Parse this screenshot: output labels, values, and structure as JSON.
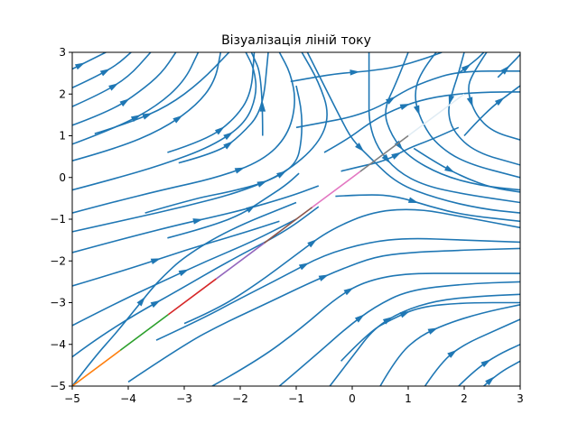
{
  "chart_data": {
    "type": "streamplot",
    "title": "Візуалізація ліній току",
    "xlabel": "",
    "ylabel": "",
    "xlim": [
      -5,
      3
    ],
    "ylim": [
      -5,
      3
    ],
    "xticks": [
      -5,
      -4,
      -3,
      -2,
      -1,
      0,
      1,
      2,
      3
    ],
    "yticks": [
      -5,
      -4,
      -3,
      -2,
      -1,
      0,
      1,
      2,
      3
    ],
    "xtick_labels": [
      "−5",
      "−4",
      "−3",
      "−2",
      "−1",
      "0",
      "1",
      "2",
      "3"
    ],
    "ytick_labels": [
      "−5",
      "−4",
      "−3",
      "−2",
      "−1",
      "0",
      "1",
      "2",
      "3"
    ],
    "grid": false,
    "stream_color": "#1f77b4",
    "diagonal_line": {
      "x": [
        -5,
        1
      ],
      "y": [
        -5,
        1
      ],
      "segment_colors": [
        "#ff7f0e",
        "#2ca02c",
        "#d62728",
        "#9467bd",
        "#8c564b",
        "#e377c2",
        "#7f7f7f"
      ],
      "extension": {
        "x": [
          1,
          2
        ],
        "y": [
          1,
          2
        ],
        "color": "#e0ecf4"
      }
    },
    "streamlines": [
      [
        [
          -5,
          -5
        ],
        [
          -4.6,
          -4.3
        ],
        [
          -4.2,
          -3.7
        ],
        [
          -3.9,
          -3.2
        ],
        [
          -3.6,
          -2.7
        ],
        [
          -3.4,
          -2.4
        ],
        [
          -3.0,
          -1.9
        ],
        [
          -2.2,
          -1.25
        ],
        [
          -1.0,
          -0.6
        ]
      ],
      [
        [
          -5,
          -4.3
        ],
        [
          -4.6,
          -3.9
        ],
        [
          -3.9,
          -3.3
        ],
        [
          -3.1,
          -2.7
        ],
        [
          -2.2,
          -2.0
        ],
        [
          -1.2,
          -1.3
        ],
        [
          -0.6,
          -0.7
        ]
      ],
      [
        [
          -5,
          -3.55
        ],
        [
          -4.2,
          -3.0
        ],
        [
          -3.4,
          -2.5
        ],
        [
          -2.6,
          -2.0
        ],
        [
          -1.8,
          -1.55
        ],
        [
          -1.0,
          -1.0
        ]
      ],
      [
        [
          -5,
          -2.6
        ],
        [
          -4.0,
          -2.2
        ],
        [
          -3.0,
          -1.75
        ],
        [
          -2.0,
          -1.35
        ],
        [
          -1.3,
          -1.05
        ]
      ],
      [
        [
          -5,
          -1.8
        ],
        [
          -3.5,
          -1.25
        ],
        [
          -2.0,
          -0.8
        ],
        [
          -1.1,
          -0.45
        ],
        [
          -0.6,
          -0.2
        ]
      ],
      [
        [
          -5,
          -1.3
        ],
        [
          -4.0,
          -1.0
        ],
        [
          -3.0,
          -0.7
        ],
        [
          -2.0,
          -0.35
        ],
        [
          -1.2,
          0.1
        ],
        [
          -0.6,
          0.8
        ],
        [
          -0.4,
          1.5
        ],
        [
          -0.6,
          2.3
        ],
        [
          -0.9,
          3.0
        ]
      ],
      [
        [
          -5,
          -0.85
        ],
        [
          -4.3,
          -0.6
        ],
        [
          -3.4,
          -0.3
        ],
        [
          -2.4,
          0.0
        ],
        [
          -1.6,
          0.4
        ],
        [
          -1.15,
          1.0
        ],
        [
          -1.0,
          1.8
        ],
        [
          -1.1,
          2.5
        ],
        [
          -1.3,
          3.0
        ]
      ],
      [
        [
          -5,
          -0.3
        ],
        [
          -4.3,
          -0.05
        ],
        [
          -3.4,
          0.3
        ],
        [
          -2.5,
          0.75
        ],
        [
          -1.9,
          1.3
        ],
        [
          -1.7,
          2.0
        ],
        [
          -1.75,
          2.6
        ],
        [
          -1.9,
          3.0
        ]
      ],
      [
        [
          -5,
          0.4
        ],
        [
          -4.2,
          0.7
        ],
        [
          -3.4,
          1.15
        ],
        [
          -2.8,
          1.7
        ],
        [
          -2.45,
          2.3
        ],
        [
          -2.35,
          3.0
        ]
      ],
      [
        [
          -5,
          0.8
        ],
        [
          -4.2,
          1.2
        ],
        [
          -3.5,
          1.7
        ],
        [
          -3.0,
          2.3
        ],
        [
          -2.75,
          3.0
        ]
      ],
      [
        [
          -5,
          1.25
        ],
        [
          -4.3,
          1.6
        ],
        [
          -3.8,
          2.05
        ],
        [
          -3.4,
          2.5
        ],
        [
          -3.15,
          3.0
        ]
      ],
      [
        [
          -5,
          1.7
        ],
        [
          -4.5,
          2.0
        ],
        [
          -4.0,
          2.4
        ],
        [
          -3.6,
          3.0
        ]
      ],
      [
        [
          -5,
          2.15
        ],
        [
          -4.6,
          2.4
        ],
        [
          -4.2,
          2.7
        ],
        [
          -3.95,
          3.0
        ]
      ],
      [
        [
          -5,
          2.6
        ],
        [
          -4.7,
          2.8
        ],
        [
          -4.4,
          3.0
        ]
      ],
      [
        [
          -4.6,
          1.05
        ],
        [
          -4.0,
          1.3
        ],
        [
          -3.3,
          1.7
        ],
        [
          -2.7,
          2.3
        ],
        [
          -2.2,
          3.0
        ]
      ],
      [
        [
          -3.3,
          0.6
        ],
        [
          -2.6,
          0.9
        ],
        [
          -2.1,
          1.4
        ],
        [
          -1.8,
          2.0
        ],
        [
          -1.75,
          3.0
        ]
      ],
      [
        [
          -3.1,
          0.35
        ],
        [
          -2.4,
          0.6
        ],
        [
          -2.0,
          1.0
        ],
        [
          -1.6,
          1.6
        ],
        [
          -1.5,
          3.0
        ]
      ],
      [
        [
          -3.7,
          -0.85
        ],
        [
          -2.8,
          -0.5
        ],
        [
          -2.2,
          -0.35
        ],
        [
          -1.5,
          -0.1
        ],
        [
          -1.0,
          0.3
        ],
        [
          -0.9,
          0.9
        ],
        [
          -0.9,
          1.6
        ],
        [
          -1.0,
          2.2
        ]
      ],
      [
        [
          -3.3,
          -1.45
        ],
        [
          -2.6,
          -1.2
        ],
        [
          -2.0,
          -0.9
        ],
        [
          -1.6,
          -0.55
        ],
        [
          -1.2,
          -0.2
        ],
        [
          -0.95,
          0.1
        ]
      ],
      [
        [
          -1.6,
          1.0
        ],
        [
          -1.6,
          2.4
        ],
        [
          -1.8,
          3.0
        ]
      ],
      [
        [
          -4.0,
          -4.9
        ],
        [
          -3.0,
          -4.0
        ],
        [
          -2.3,
          -3.5
        ],
        [
          -1.5,
          -3.0
        ],
        [
          -0.8,
          -2.55
        ],
        [
          -0.2,
          -2.2
        ],
        [
          0.4,
          -1.9
        ],
        [
          1.0,
          -1.8
        ],
        [
          1.8,
          -1.75
        ],
        [
          3.0,
          -1.7
        ]
      ],
      [
        [
          -3.5,
          -3.9
        ],
        [
          -2.7,
          -3.4
        ],
        [
          -2.0,
          -2.9
        ],
        [
          -1.2,
          -2.35
        ],
        [
          -0.5,
          -1.85
        ],
        [
          0.3,
          -1.55
        ],
        [
          1.0,
          -1.45
        ],
        [
          2.0,
          -1.5
        ],
        [
          3.0,
          -1.55
        ]
      ],
      [
        [
          -3.0,
          -3.5
        ],
        [
          -2.4,
          -3.15
        ],
        [
          -1.7,
          -2.55
        ],
        [
          -1.0,
          -1.85
        ],
        [
          -0.4,
          -1.25
        ],
        [
          0.4,
          -0.8
        ],
        [
          1.2,
          -0.75
        ],
        [
          2.0,
          -0.95
        ],
        [
          3.0,
          -1.2
        ]
      ],
      [
        [
          -2.5,
          -5
        ],
        [
          -1.7,
          -4.4
        ],
        [
          -0.9,
          -3.6
        ],
        [
          -0.3,
          -2.9
        ],
        [
          0.2,
          -2.5
        ],
        [
          0.9,
          -2.3
        ],
        [
          2.0,
          -2.3
        ],
        [
          3.0,
          -2.3
        ]
      ],
      [
        [
          -1.3,
          -5
        ],
        [
          -0.6,
          -4.2
        ],
        [
          -0.1,
          -3.6
        ],
        [
          0.4,
          -3.1
        ],
        [
          1.0,
          -2.7
        ],
        [
          2.0,
          -2.55
        ],
        [
          3.0,
          -2.5
        ]
      ],
      [
        [
          -0.4,
          -5
        ],
        [
          0.0,
          -4.3
        ],
        [
          0.4,
          -3.6
        ],
        [
          0.9,
          -3.2
        ],
        [
          1.5,
          -2.95
        ],
        [
          2.2,
          -2.85
        ],
        [
          3.0,
          -2.8
        ]
      ],
      [
        [
          -0.2,
          -4.4
        ],
        [
          0.3,
          -3.7
        ],
        [
          0.7,
          -3.4
        ],
        [
          1.2,
          -3.1
        ],
        [
          2.0,
          -3.0
        ],
        [
          3.0,
          -3.0
        ]
      ],
      [
        [
          0.5,
          -5
        ],
        [
          0.8,
          -4.3
        ],
        [
          1.2,
          -3.8
        ],
        [
          1.7,
          -3.5
        ],
        [
          2.3,
          -3.25
        ],
        [
          3.0,
          -3.05
        ]
      ],
      [
        [
          1.3,
          -5
        ],
        [
          1.6,
          -4.4
        ],
        [
          2.0,
          -4.0
        ],
        [
          2.5,
          -3.7
        ],
        [
          3.0,
          -3.4
        ]
      ],
      [
        [
          1.9,
          -5
        ],
        [
          2.2,
          -4.6
        ],
        [
          2.6,
          -4.25
        ],
        [
          3.0,
          -4.0
        ]
      ],
      [
        [
          2.35,
          -5
        ],
        [
          2.6,
          -4.7
        ],
        [
          3.0,
          -4.4
        ]
      ],
      [
        [
          -0.8,
          3.0
        ],
        [
          -0.5,
          2.2
        ],
        [
          -0.2,
          1.4
        ],
        [
          0.0,
          0.9
        ],
        [
          0.3,
          0.5
        ],
        [
          0.8,
          -0.15
        ],
        [
          1.5,
          -0.5
        ],
        [
          2.3,
          -0.75
        ],
        [
          3.0,
          -0.85
        ]
      ],
      [
        [
          0.3,
          3.0
        ],
        [
          0.3,
          2.0
        ],
        [
          0.3,
          1.3
        ],
        [
          0.45,
          0.7
        ],
        [
          0.8,
          0.15
        ],
        [
          1.3,
          -0.2
        ],
        [
          2.0,
          -0.4
        ],
        [
          3.0,
          -0.6
        ]
      ],
      [
        [
          1.0,
          3.0
        ],
        [
          0.8,
          2.3
        ],
        [
          0.55,
          1.6
        ],
        [
          0.7,
          1.0
        ],
        [
          1.0,
          0.5
        ],
        [
          1.6,
          0.05
        ],
        [
          2.3,
          -0.2
        ],
        [
          3.0,
          -0.3
        ]
      ],
      [
        [
          1.5,
          3.0
        ],
        [
          1.2,
          2.5
        ],
        [
          1.1,
          1.9
        ],
        [
          1.25,
          1.3
        ],
        [
          1.5,
          0.8
        ],
        [
          2.0,
          0.35
        ],
        [
          3.0,
          0.0
        ]
      ],
      [
        [
          2.0,
          3.0
        ],
        [
          1.9,
          2.5
        ],
        [
          1.8,
          2.1
        ],
        [
          1.7,
          1.6
        ],
        [
          1.8,
          1.1
        ],
        [
          2.2,
          0.6
        ],
        [
          3.0,
          0.3
        ]
      ],
      [
        [
          2.4,
          3.0
        ],
        [
          2.15,
          2.5
        ],
        [
          2.05,
          2.1
        ],
        [
          2.2,
          1.5
        ],
        [
          2.5,
          1.1
        ],
        [
          3.0,
          0.9
        ]
      ],
      [
        [
          2.0,
          1.0
        ],
        [
          2.4,
          1.6
        ],
        [
          2.9,
          2.1
        ],
        [
          3.0,
          2.2
        ]
      ],
      [
        [
          2.6,
          2.4
        ],
        [
          2.9,
          2.8
        ],
        [
          3.0,
          2.95
        ]
      ],
      [
        [
          1.1,
          0.7
        ],
        [
          1.5,
          0.35
        ],
        [
          2.0,
          0.0
        ],
        [
          2.5,
          -0.25
        ],
        [
          3.0,
          -0.35
        ]
      ],
      [
        [
          -1.0,
          1.2
        ],
        [
          -0.6,
          1.3
        ],
        [
          0.0,
          1.45
        ],
        [
          0.5,
          1.7
        ],
        [
          0.9,
          2.05
        ],
        [
          1.3,
          2.3
        ],
        [
          1.9,
          2.55
        ],
        [
          3.0,
          2.55
        ]
      ],
      [
        [
          -1.1,
          2.3
        ],
        [
          -0.7,
          2.4
        ],
        [
          -0.2,
          2.5
        ],
        [
          0.3,
          2.55
        ],
        [
          0.8,
          2.65
        ],
        [
          1.3,
          2.85
        ],
        [
          1.6,
          3.0
        ]
      ],
      [
        [
          -0.5,
          0.6
        ],
        [
          -0.1,
          0.9
        ],
        [
          0.3,
          1.3
        ],
        [
          0.7,
          1.6
        ],
        [
          1.2,
          1.85
        ],
        [
          1.8,
          2.0
        ],
        [
          2.5,
          2.05
        ],
        [
          3.0,
          2.05
        ]
      ],
      [
        [
          -0.2,
          0.15
        ],
        [
          0.1,
          0.25
        ],
        [
          0.6,
          0.4
        ],
        [
          1.0,
          0.7
        ],
        [
          1.4,
          0.9
        ],
        [
          1.9,
          1.2
        ]
      ],
      [
        [
          -0.3,
          -0.45
        ],
        [
          0.3,
          -0.4
        ],
        [
          0.8,
          -0.45
        ],
        [
          1.4,
          -0.7
        ],
        [
          2.0,
          -0.9
        ],
        [
          3.0,
          -1.05
        ]
      ],
      [
        [
          1.9,
          2.5
        ],
        [
          2.2,
          2.8
        ],
        [
          2.35,
          3.0
        ]
      ]
    ]
  }
}
